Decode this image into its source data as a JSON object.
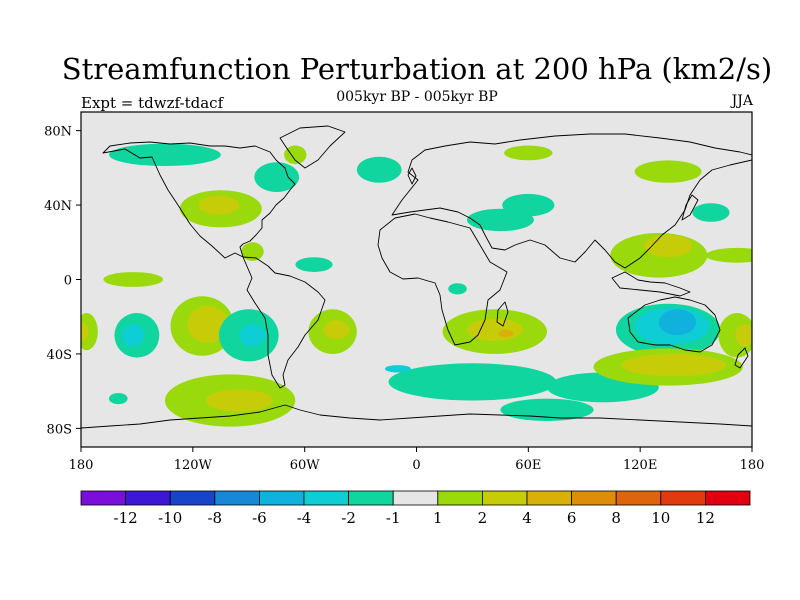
{
  "title": "Streamfunction Perturbation at 200 hPa (km2/s)",
  "subtitle": "005kyr BP - 005kyr BP",
  "left_label": "Expt = tdwzf-tdacf",
  "right_label": "JJA",
  "colors": {
    "background": "#e6e6e6",
    "coast": "#000000"
  },
  "chart_data": {
    "type": "heatmap",
    "projection": "cylindrical-equidistant",
    "xlim": [
      -180,
      180
    ],
    "ylim": [
      -90,
      90
    ],
    "x_ticks": [
      {
        "value": -180,
        "label": "180"
      },
      {
        "value": -120,
        "label": "120W"
      },
      {
        "value": -60,
        "label": "60W"
      },
      {
        "value": 0,
        "label": "0"
      },
      {
        "value": 60,
        "label": "60E"
      },
      {
        "value": 120,
        "label": "120E"
      },
      {
        "value": 180,
        "label": "180"
      }
    ],
    "y_ticks": [
      {
        "value": 80,
        "label": "80N"
      },
      {
        "value": 40,
        "label": "40N"
      },
      {
        "value": 0,
        "label": "0"
      },
      {
        "value": -40,
        "label": "40S"
      },
      {
        "value": -80,
        "label": "80S"
      }
    ],
    "colorbar": {
      "labels": [
        "-12",
        "-10",
        "-8",
        "-6",
        "-4",
        "-2",
        "-1",
        "1",
        "2",
        "4",
        "6",
        "8",
        "10",
        "12"
      ],
      "colors": [
        "#7b0fd9",
        "#3c17d6",
        "#1745c9",
        "#1788d6",
        "#10b1dc",
        "#0fcdd5",
        "#10d59e",
        "#e6e6e6",
        "#9ad90b",
        "#c7cc08",
        "#d9b00a",
        "#de8d0b",
        "#df650c",
        "#df3b0e",
        "#e00010"
      ]
    },
    "regions": [
      {
        "id": "nw-pacific-pos",
        "lon": 172,
        "lat": 13,
        "rx": 17,
        "ry": 4,
        "level": "1"
      },
      {
        "id": "arctic-alaska-neg",
        "lon": -135,
        "lat": 67,
        "rx": 30,
        "ry": 6,
        "level": "-1"
      },
      {
        "id": "us-west-pos",
        "lon": -105,
        "lat": 38,
        "rx": 22,
        "ry": 10,
        "level": "1"
      },
      {
        "id": "us-west-core",
        "lon": -106,
        "lat": 40,
        "rx": 11,
        "ry": 5,
        "level": "2"
      },
      {
        "id": "canada-neg",
        "lon": -75,
        "lat": 55,
        "rx": 12,
        "ry": 8,
        "level": "-1"
      },
      {
        "id": "caribbean-pos",
        "lon": -88,
        "lat": 15,
        "rx": 6,
        "ry": 5,
        "level": "1"
      },
      {
        "id": "n-atlantic-neg",
        "lon": -20,
        "lat": 59,
        "rx": 12,
        "ry": 7,
        "level": "-1"
      },
      {
        "id": "greenland-pos",
        "lon": -65,
        "lat": 67,
        "rx": 6,
        "ry": 5,
        "level": "1"
      },
      {
        "id": "mideast-neg",
        "lon": 45,
        "lat": 32,
        "rx": 18,
        "ry": 6,
        "level": "-1"
      },
      {
        "id": "asia-neg",
        "lon": 60,
        "lat": 40,
        "rx": 14,
        "ry": 6,
        "level": "-1"
      },
      {
        "id": "russia-pos",
        "lon": 60,
        "lat": 68,
        "rx": 13,
        "ry": 4,
        "level": "1"
      },
      {
        "id": "pacific-ne-pos",
        "lon": 135,
        "lat": 58,
        "rx": 18,
        "ry": 6,
        "level": "1"
      },
      {
        "id": "pacific-n-neg",
        "lon": 158,
        "lat": 36,
        "rx": 10,
        "ry": 5,
        "level": "-1"
      },
      {
        "id": "se-asia-pos",
        "lon": 130,
        "lat": 13,
        "rx": 26,
        "ry": 12,
        "level": "1"
      },
      {
        "id": "se-asia-core",
        "lon": 135,
        "lat": 18,
        "rx": 13,
        "ry": 6,
        "level": "2"
      },
      {
        "id": "trop-atl-neg",
        "lon": -55,
        "lat": 8,
        "rx": 10,
        "ry": 4,
        "level": "-1"
      },
      {
        "id": "africa-neg",
        "lon": 22,
        "lat": -5,
        "rx": 5,
        "ry": 3,
        "level": "-1"
      },
      {
        "id": "trop-pac-pos",
        "lon": -152,
        "lat": 0,
        "rx": 16,
        "ry": 4,
        "level": "1"
      },
      {
        "id": "s-pacific-neg",
        "lon": -150,
        "lat": -30,
        "rx": 12,
        "ry": 12,
        "level": "-1"
      },
      {
        "id": "s-pacific-neg-core",
        "lon": -152,
        "lat": -30,
        "rx": 6,
        "ry": 6,
        "level": "-2"
      },
      {
        "id": "sp-pos",
        "lon": -115,
        "lat": -25,
        "rx": 17,
        "ry": 16,
        "level": "1"
      },
      {
        "id": "sp-pos-core",
        "lon": -112,
        "lat": -24,
        "rx": 11,
        "ry": 10,
        "level": "2"
      },
      {
        "id": "chile-neg",
        "lon": -90,
        "lat": -30,
        "rx": 16,
        "ry": 14,
        "level": "-1"
      },
      {
        "id": "chile-neg-core",
        "lon": -88,
        "lat": -30,
        "rx": 7,
        "ry": 6,
        "level": "-2"
      },
      {
        "id": "s-atl-pos",
        "lon": -45,
        "lat": -28,
        "rx": 13,
        "ry": 12,
        "level": "1"
      },
      {
        "id": "s-atl-core",
        "lon": -43,
        "lat": -27,
        "rx": 7,
        "ry": 5,
        "level": "2"
      },
      {
        "id": "se-pacific-pos",
        "lon": -100,
        "lat": -65,
        "rx": 35,
        "ry": 14,
        "level": "1"
      },
      {
        "id": "se-pacific-core",
        "lon": -95,
        "lat": -65,
        "rx": 18,
        "ry": 6,
        "level": "2"
      },
      {
        "id": "sw-pacific-neg",
        "lon": -160,
        "lat": -64,
        "rx": 5,
        "ry": 3,
        "level": "-1"
      },
      {
        "id": "southern-ocean-neg",
        "lon": 30,
        "lat": -55,
        "rx": 45,
        "ry": 10,
        "level": "-1"
      },
      {
        "id": "so-neg-2",
        "lon": 100,
        "lat": -58,
        "rx": 30,
        "ry": 8,
        "level": "-1"
      },
      {
        "id": "so-neg-3",
        "lon": 70,
        "lat": -70,
        "rx": 25,
        "ry": 6,
        "level": "-1"
      },
      {
        "id": "so-neg-core",
        "lon": -10,
        "lat": -48,
        "rx": 7,
        "ry": 2,
        "level": "-2"
      },
      {
        "id": "s-africa-pos",
        "lon": 42,
        "lat": -28,
        "rx": 28,
        "ry": 12,
        "level": "1"
      },
      {
        "id": "s-africa-core",
        "lon": 42,
        "lat": -27,
        "rx": 15,
        "ry": 6,
        "level": "2"
      },
      {
        "id": "s-africa-core2",
        "lon": 48,
        "lat": -29,
        "rx": 4,
        "ry": 2,
        "level": "4"
      },
      {
        "id": "australia-neg",
        "lon": 135,
        "lat": -27,
        "rx": 28,
        "ry": 14,
        "level": "-1"
      },
      {
        "id": "australia-neg-2",
        "lon": 137,
        "lat": -25,
        "rx": 20,
        "ry": 10,
        "level": "-2"
      },
      {
        "id": "australia-neg-core",
        "lon": 140,
        "lat": -23,
        "rx": 10,
        "ry": 7,
        "level": "-4"
      },
      {
        "id": "s-indian-pos",
        "lon": 135,
        "lat": -47,
        "rx": 40,
        "ry": 10,
        "level": "1"
      },
      {
        "id": "s-indian-core",
        "lon": 138,
        "lat": -46,
        "rx": 28,
        "ry": 6,
        "level": "2"
      },
      {
        "id": "nz-pos",
        "lon": 172,
        "lat": -30,
        "rx": 10,
        "ry": 12,
        "level": "1"
      },
      {
        "id": "nz-core",
        "lon": 176,
        "lat": -30,
        "rx": 5,
        "ry": 6,
        "level": "2"
      },
      {
        "id": "wrap-pos",
        "lon": -177,
        "lat": -28,
        "rx": 6,
        "ry": 10,
        "level": "1"
      },
      {
        "id": "wrap-core",
        "lon": -179,
        "lat": -28,
        "rx": 3,
        "ry": 5,
        "level": "2"
      }
    ]
  }
}
